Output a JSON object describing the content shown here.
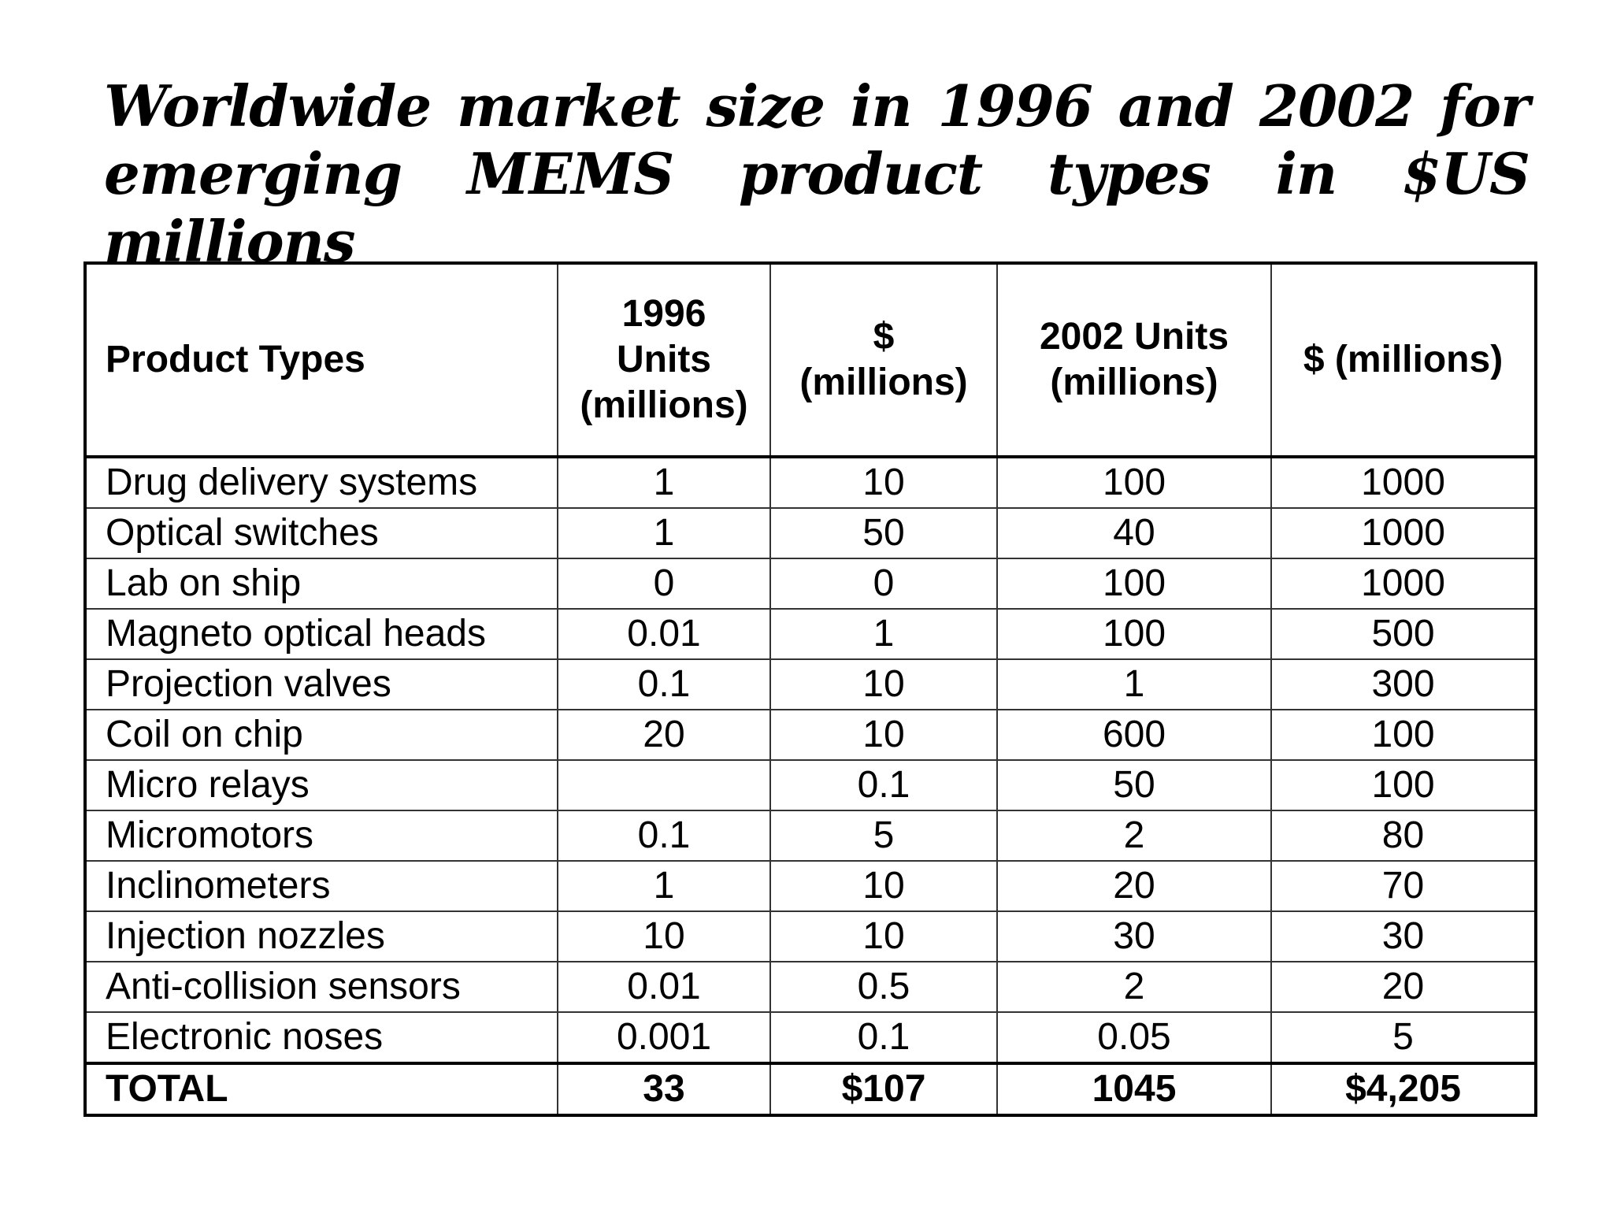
{
  "title": {
    "line1": "Worldwide  market size in 1996 and 2002 for",
    "line2": "emerging MEMS product types in $US millions"
  },
  "table": {
    "headers": [
      {
        "lines": [
          "Product Types"
        ]
      },
      {
        "lines": [
          "1996",
          "Units",
          "(millions)"
        ]
      },
      {
        "lines": [
          "$",
          "(millions)"
        ]
      },
      {
        "lines": [
          "2002 Units",
          "(millions)"
        ]
      },
      {
        "lines": [
          "$ (millions)"
        ]
      }
    ],
    "rows": [
      [
        "Drug delivery systems",
        "1",
        "10",
        "100",
        "1000"
      ],
      [
        "Optical switches",
        "1",
        "50",
        "40",
        "1000"
      ],
      [
        "Lab on ship",
        "0",
        "0",
        "100",
        "1000"
      ],
      [
        "Magneto optical heads",
        "0.01",
        "1",
        "100",
        "500"
      ],
      [
        "Projection valves",
        "0.1",
        "10",
        "1",
        "300"
      ],
      [
        "Coil on chip",
        "20",
        "10",
        "600",
        "100"
      ],
      [
        "Micro relays",
        "",
        "0.1",
        "50",
        "100"
      ],
      [
        "Micromotors",
        "0.1",
        "5",
        "2",
        "80"
      ],
      [
        "Inclinometers",
        "1",
        "10",
        "20",
        "70"
      ],
      [
        "Injection nozzles",
        "10",
        "10",
        "30",
        "30"
      ],
      [
        "Anti-collision sensors",
        "0.01",
        "0.5",
        "2",
        "20"
      ],
      [
        "Electronic noses",
        "0.001",
        "0.1",
        "0.05",
        "5"
      ]
    ],
    "total": [
      "TOTAL",
      "33",
      "$107",
      "1045",
      "$4,205"
    ]
  }
}
